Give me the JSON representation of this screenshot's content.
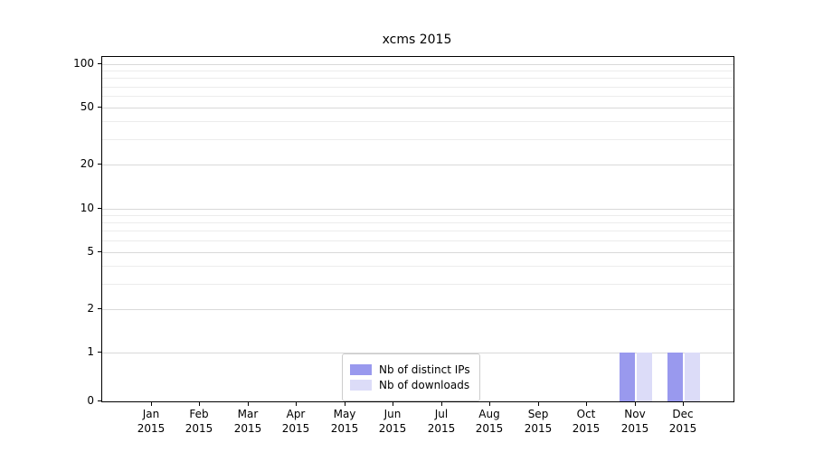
{
  "chart_data": {
    "type": "bar",
    "title": "xcms 2015",
    "categories": [
      "Jan",
      "Feb",
      "Mar",
      "Apr",
      "May",
      "Jun",
      "Jul",
      "Aug",
      "Sep",
      "Oct",
      "Nov",
      "Dec"
    ],
    "year_label": "2015",
    "series": [
      {
        "name": "Nb of distinct IPs",
        "color": "#9999ee",
        "values": [
          0,
          0,
          0,
          0,
          0,
          0,
          0,
          0,
          0,
          0,
          1,
          1
        ]
      },
      {
        "name": "Nb of downloads",
        "color": "#dcdcf8",
        "values": [
          0,
          0,
          0,
          0,
          0,
          0,
          0,
          0,
          0,
          0,
          1,
          1
        ]
      }
    ],
    "yscale": "symlog",
    "ylim": [
      0,
      100
    ],
    "yticks": [
      0,
      1,
      2,
      5,
      10,
      20,
      50,
      100
    ],
    "minor_gridline_values": [
      2,
      3,
      4,
      5,
      6,
      7,
      8,
      9,
      10,
      20,
      30,
      40,
      50,
      60,
      70,
      80,
      90,
      100
    ],
    "grid": "horizontal",
    "legend_position": "bottom-center",
    "colors": {
      "major_grid": "#d9d9d9",
      "minor_grid": "#ececec",
      "axis": "#000000"
    }
  }
}
